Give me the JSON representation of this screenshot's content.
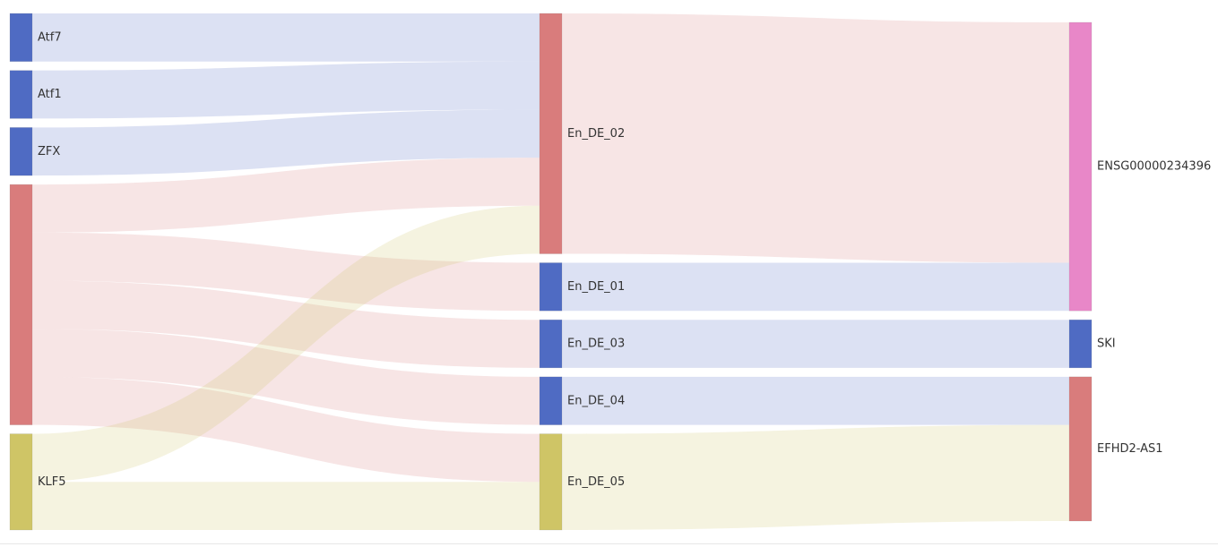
{
  "chart_data": {
    "type": "sankey",
    "colors": {
      "blue": "#4f6bc3",
      "red": "#d97c7c",
      "yellow": "#cfc566",
      "pink": "#e887c8"
    },
    "nodes": [
      {
        "id": "Atf7",
        "label": "Atf7",
        "color": "blue"
      },
      {
        "id": "Atf1",
        "label": "Atf1",
        "color": "blue"
      },
      {
        "id": "ZFX",
        "label": "ZFX",
        "color": "blue"
      },
      {
        "id": "RED_SRC",
        "label": "",
        "color": "red"
      },
      {
        "id": "KLF5",
        "label": "KLF5",
        "color": "yellow"
      },
      {
        "id": "En_DE_02",
        "label": "En_DE_02",
        "color": "red"
      },
      {
        "id": "En_DE_01",
        "label": "En_DE_01",
        "color": "blue"
      },
      {
        "id": "En_DE_03",
        "label": "En_DE_03",
        "color": "blue"
      },
      {
        "id": "En_DE_04",
        "label": "En_DE_04",
        "color": "blue"
      },
      {
        "id": "En_DE_05",
        "label": "En_DE_05",
        "color": "yellow"
      },
      {
        "id": "ENSG00000234396",
        "label": "ENSG00000234396",
        "color": "pink"
      },
      {
        "id": "SKI",
        "label": "SKI",
        "color": "blue"
      },
      {
        "id": "EFHD2-AS1",
        "label": "EFHD2-AS1",
        "color": "red"
      }
    ],
    "links": [
      {
        "source": "Atf7",
        "target": "En_DE_02",
        "value": 1
      },
      {
        "source": "Atf1",
        "target": "En_DE_02",
        "value": 1
      },
      {
        "source": "ZFX",
        "target": "En_DE_02",
        "value": 1
      },
      {
        "source": "RED_SRC",
        "target": "En_DE_02",
        "value": 1
      },
      {
        "source": "RED_SRC",
        "target": "En_DE_01",
        "value": 1
      },
      {
        "source": "RED_SRC",
        "target": "En_DE_03",
        "value": 1
      },
      {
        "source": "RED_SRC",
        "target": "En_DE_04",
        "value": 1
      },
      {
        "source": "RED_SRC",
        "target": "En_DE_05",
        "value": 1
      },
      {
        "source": "KLF5",
        "target": "En_DE_02",
        "value": 1
      },
      {
        "source": "KLF5",
        "target": "En_DE_05",
        "value": 1
      },
      {
        "source": "En_DE_02",
        "target": "ENSG00000234396",
        "value": 5
      },
      {
        "source": "En_DE_01",
        "target": "ENSG00000234396",
        "value": 1
      },
      {
        "source": "En_DE_03",
        "target": "SKI",
        "value": 1
      },
      {
        "source": "En_DE_04",
        "target": "EFHD2-AS1",
        "value": 1
      },
      {
        "source": "En_DE_05",
        "target": "EFHD2-AS1",
        "value": 2
      }
    ]
  }
}
